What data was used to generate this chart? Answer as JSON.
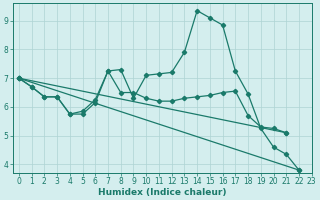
{
  "title": "",
  "xlabel": "Humidex (Indice chaleur)",
  "bg_color": "#d4eeee",
  "grid_color": "#aed4d4",
  "line_color": "#1a7a6a",
  "xlim": [
    -0.5,
    23
  ],
  "ylim": [
    3.7,
    9.6
  ],
  "yticks": [
    4,
    5,
    6,
    7,
    8,
    9
  ],
  "xticks": [
    0,
    1,
    2,
    3,
    4,
    5,
    6,
    7,
    8,
    9,
    10,
    11,
    12,
    13,
    14,
    15,
    16,
    17,
    18,
    19,
    20,
    21,
    22,
    23
  ],
  "line1_x": [
    0,
    1,
    2,
    3,
    4,
    5,
    6,
    7,
    8,
    9,
    10,
    11,
    12,
    13,
    14,
    15,
    16,
    17,
    18,
    19,
    20,
    21,
    22
  ],
  "line1_y": [
    7.0,
    6.7,
    6.35,
    6.35,
    5.75,
    5.75,
    6.15,
    7.25,
    7.3,
    6.3,
    7.1,
    7.15,
    7.2,
    7.9,
    9.35,
    9.1,
    8.85,
    7.25,
    6.45,
    5.25,
    4.6,
    4.35,
    3.8
  ],
  "line2_x": [
    0,
    1,
    2,
    3,
    4,
    5,
    6,
    7,
    8,
    9,
    10,
    11,
    12,
    13,
    14,
    15,
    16,
    17,
    18,
    19,
    20,
    21
  ],
  "line2_y": [
    7.0,
    6.7,
    6.35,
    6.35,
    5.75,
    5.85,
    6.25,
    7.25,
    6.5,
    6.5,
    6.3,
    6.2,
    6.2,
    6.3,
    6.35,
    6.4,
    6.5,
    6.55,
    5.7,
    5.3,
    5.25,
    5.1
  ],
  "line3_x": [
    0,
    22
  ],
  "line3_y": [
    7.0,
    3.8
  ],
  "line4_x": [
    0,
    21
  ],
  "line4_y": [
    7.0,
    5.1
  ],
  "marker_style": "D",
  "marker_size": 2.2,
  "lw": 0.9
}
